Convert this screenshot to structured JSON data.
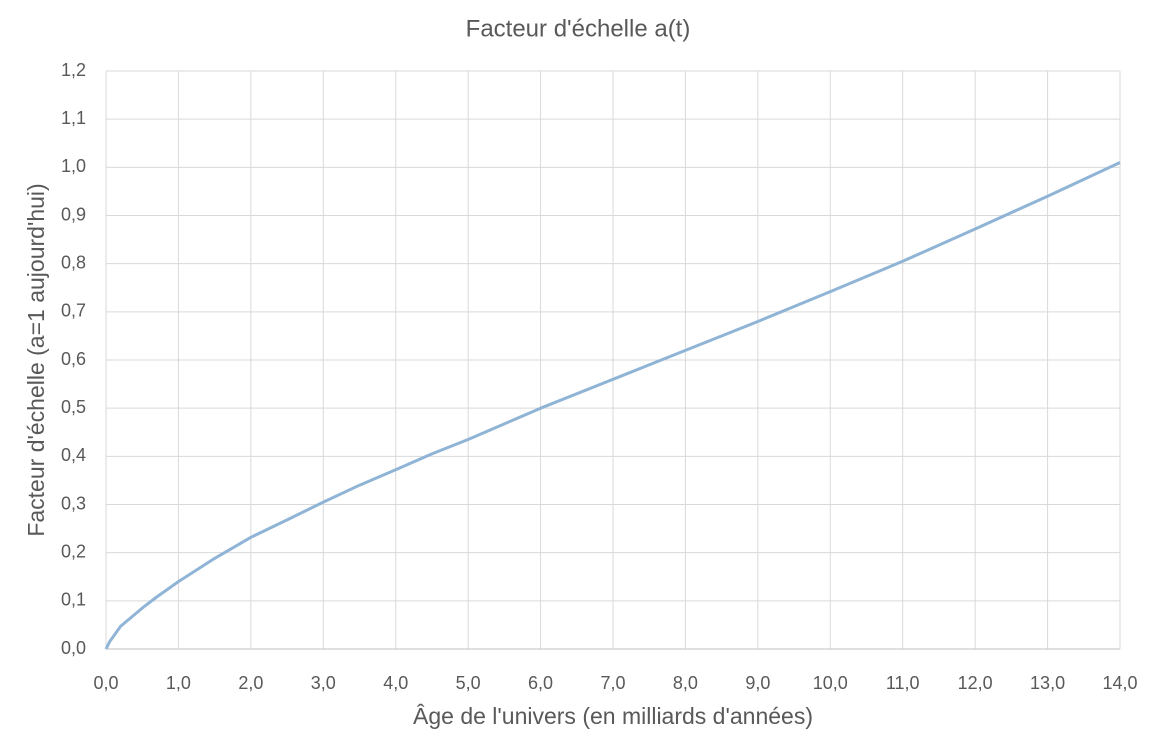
{
  "chart_data": {
    "type": "line",
    "title": "Facteur d'échelle a(t)",
    "x_label": "Âge de l'univers (en milliards d'années)",
    "y_label": "Facteur d'échelle (a=1 aujourd'hui)",
    "x": [
      0,
      0.05,
      0.2,
      0.5,
      0.7,
      1.0,
      1.5,
      2.0,
      2.5,
      3.0,
      3.5,
      4.0,
      4.5,
      5.0,
      6.0,
      7.0,
      8.0,
      9.0,
      10.0,
      11.0,
      12.0,
      13.0,
      14.0
    ],
    "series": [
      {
        "name": "a(t)",
        "color": "#8fb4d6",
        "values": [
          0,
          0.015,
          0.047,
          0.085,
          0.108,
          0.14,
          0.188,
          0.232,
          0.268,
          0.305,
          0.34,
          0.372,
          0.405,
          0.435,
          0.5,
          0.56,
          0.62,
          0.68,
          0.742,
          0.805,
          0.872,
          0.94,
          1.01
        ]
      }
    ],
    "xlim": [
      0,
      14
    ],
    "xticks": [
      {
        "value": 0,
        "label": "0,0"
      },
      {
        "value": 1,
        "label": "1,0"
      },
      {
        "value": 2,
        "label": "2,0"
      },
      {
        "value": 3,
        "label": "3,0"
      },
      {
        "value": 4,
        "label": "4,0"
      },
      {
        "value": 5,
        "label": "5,0"
      },
      {
        "value": 6,
        "label": "6,0"
      },
      {
        "value": 7,
        "label": "7,0"
      },
      {
        "value": 8,
        "label": "8,0"
      },
      {
        "value": 9,
        "label": "9,0"
      },
      {
        "value": 10,
        "label": "10,0"
      },
      {
        "value": 11,
        "label": "11,0"
      },
      {
        "value": 12,
        "label": "12,0"
      },
      {
        "value": 13,
        "label": "13,0"
      },
      {
        "value": 14,
        "label": "14,0"
      }
    ],
    "ylim": [
      0,
      1.2
    ],
    "yticks": [
      {
        "value": 0,
        "label": "0,0"
      },
      {
        "value": 0.1,
        "label": "0,1"
      },
      {
        "value": 0.2,
        "label": "0,2"
      },
      {
        "value": 0.3,
        "label": "0,3"
      },
      {
        "value": 0.4,
        "label": "0,4"
      },
      {
        "value": 0.5,
        "label": "0,5"
      },
      {
        "value": 0.6,
        "label": "0,6"
      },
      {
        "value": 0.7,
        "label": "0,7"
      },
      {
        "value": 0.8,
        "label": "0,8"
      },
      {
        "value": 0.9,
        "label": "0,9"
      },
      {
        "value": 1.0,
        "label": "1,0"
      },
      {
        "value": 1.1,
        "label": "1,1"
      },
      {
        "value": 1.2,
        "label": "1,2"
      }
    ],
    "grid": true
  }
}
